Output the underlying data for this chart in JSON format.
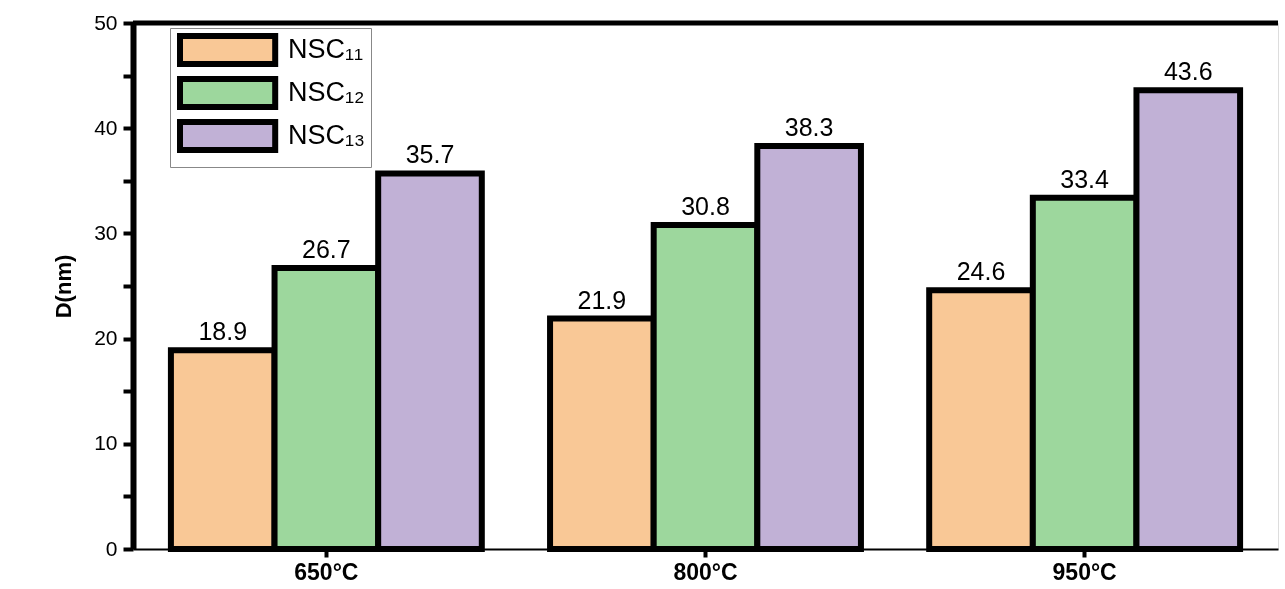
{
  "chart_data": {
    "type": "bar",
    "ylabel": "D(nm)",
    "categories": [
      "650°C",
      "800°C",
      "950°C"
    ],
    "series": [
      {
        "name": "NSC₁₁",
        "color": "#f9c896",
        "values": [
          18.9,
          21.9,
          24.6
        ]
      },
      {
        "name": "NSC₁₂",
        "color": "#9dd79d",
        "values": [
          26.7,
          30.8,
          33.4
        ]
      },
      {
        "name": "NSC₁₃",
        "color": "#c1b1d6",
        "values": [
          35.7,
          38.3,
          43.6
        ]
      }
    ],
    "ylim": [
      0,
      50
    ],
    "yticks": [
      0,
      {
        "value": 5,
        "label": null
      },
      10,
      {
        "value": 15,
        "label": null
      },
      20,
      {
        "value": 25,
        "label": null
      },
      30,
      {
        "value": 35,
        "label": null
      },
      40,
      {
        "value": 45,
        "label": null
      },
      50
    ],
    "data_labels": true,
    "legend": "top left",
    "grid": false
  }
}
